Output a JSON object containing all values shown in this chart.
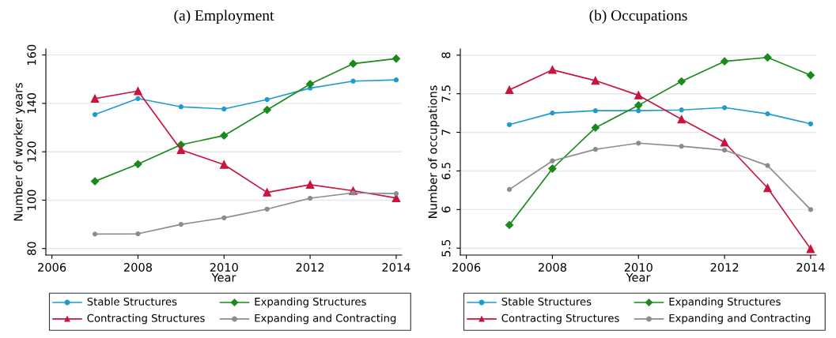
{
  "chart_data": [
    {
      "type": "line",
      "title": "(a) Employment",
      "xlabel": "Year",
      "ylabel": "Number of worker years",
      "x": [
        2007,
        2008,
        2009,
        2010,
        2011,
        2012,
        2013,
        2014
      ],
      "xlim": [
        2005.86,
        2014.13
      ],
      "xticks": [
        2006,
        2008,
        2010,
        2012,
        2014
      ],
      "ylim": [
        77.3,
        162.5
      ],
      "yticks": [
        80,
        100,
        120,
        140,
        160
      ],
      "grid": "y",
      "legend": "bottom",
      "series": [
        {
          "name": "Stable Structures",
          "color": "#1f9bcf",
          "marker": "circle",
          "values": [
            135.4,
            142.0,
            138.6,
            137.7,
            141.6,
            146.3,
            149.2,
            149.7
          ]
        },
        {
          "name": "Expanding Structures",
          "color": "#1a8a1a",
          "marker": "diamond",
          "values": [
            107.8,
            114.9,
            122.9,
            126.7,
            137.3,
            148.0,
            156.4,
            158.5
          ]
        },
        {
          "name": "Contracting Structures",
          "color": "#c8143f",
          "marker": "triangle",
          "values": [
            142.0,
            145.1,
            120.8,
            114.7,
            103.2,
            106.4,
            103.9,
            100.9
          ]
        },
        {
          "name": "Expanding and Contracting",
          "color": "#8c8c8c",
          "marker": "circle",
          "values": [
            86.0,
            86.1,
            90.0,
            92.7,
            96.3,
            100.8,
            103.0,
            102.7
          ]
        }
      ]
    },
    {
      "type": "line",
      "title": "(b) Occupations",
      "xlabel": "Year",
      "ylabel": "Number of occupations",
      "x": [
        2007,
        2008,
        2009,
        2010,
        2011,
        2012,
        2013,
        2014
      ],
      "xlim": [
        2005.86,
        2014.13
      ],
      "xticks": [
        2006,
        2008,
        2010,
        2012,
        2014
      ],
      "ylim": [
        5.41,
        8.08
      ],
      "yticks": [
        {
          "value": 5.5,
          "label": "5.5"
        },
        {
          "value": 6,
          "label": "6"
        },
        {
          "value": 6.5,
          "label": "6.5"
        },
        {
          "value": 7,
          "label": "7"
        },
        {
          "value": 7.5,
          "label": "7.5"
        },
        {
          "value": 8,
          "label": "8"
        }
      ],
      "grid": "y",
      "legend": "bottom",
      "series": [
        {
          "name": "Stable Structures",
          "color": "#1f9bcf",
          "marker": "circle",
          "values": [
            7.1,
            7.25,
            7.28,
            7.28,
            7.29,
            7.32,
            7.24,
            7.11
          ]
        },
        {
          "name": "Expanding Structures",
          "color": "#1a8a1a",
          "marker": "diamond",
          "values": [
            5.8,
            6.53,
            7.06,
            7.35,
            7.66,
            7.92,
            7.97,
            7.74
          ]
        },
        {
          "name": "Contracting Structures",
          "color": "#c8143f",
          "marker": "triangle",
          "values": [
            7.55,
            7.81,
            7.67,
            7.48,
            7.17,
            6.87,
            6.28,
            5.49
          ]
        },
        {
          "name": "Expanding and Contracting",
          "color": "#8c8c8c",
          "marker": "circle",
          "values": [
            6.26,
            6.63,
            6.78,
            6.86,
            6.82,
            6.77,
            6.57,
            6.0
          ]
        }
      ]
    }
  ]
}
